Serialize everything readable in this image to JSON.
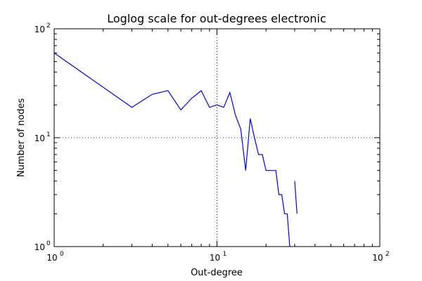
{
  "chart_data": {
    "type": "line",
    "title": "Loglog scale for out-degrees electronic",
    "xlabel": "Out-degree",
    "ylabel": "Number of nodes",
    "xscale": "log",
    "yscale": "log",
    "xlim": [
      1,
      100
    ],
    "ylim": [
      1,
      100
    ],
    "grid": "dotted, major decades",
    "x_ticks": [
      {
        "base": "10",
        "exp": "0",
        "value": 1
      },
      {
        "base": "10",
        "exp": "1",
        "value": 10
      },
      {
        "base": "10",
        "exp": "2",
        "value": 100
      }
    ],
    "y_ticks": [
      {
        "base": "10",
        "exp": "0",
        "value": 1
      },
      {
        "base": "10",
        "exp": "1",
        "value": 10
      },
      {
        "base": "10",
        "exp": "2",
        "value": 100
      }
    ],
    "series": [
      {
        "name": "out-degrees",
        "color": "#0000ff",
        "segments": [
          {
            "x": [
              1,
              3,
              4,
              5,
              6,
              7,
              8,
              9,
              10,
              11,
              12,
              13,
              14,
              15,
              16,
              17,
              18,
              19,
              20,
              21,
              22,
              23,
              24,
              25,
              26,
              27,
              28
            ],
            "y": [
              60,
              19,
              25,
              27,
              18,
              23,
              27,
              19,
              20,
              19,
              26,
              16,
              12,
              5,
              15,
              10,
              7,
              7,
              5,
              5,
              5,
              5,
              3,
              3,
              2,
              2,
              1
            ]
          },
          {
            "x": [
              30,
              31
            ],
            "y": [
              4,
              2
            ]
          }
        ]
      }
    ]
  }
}
